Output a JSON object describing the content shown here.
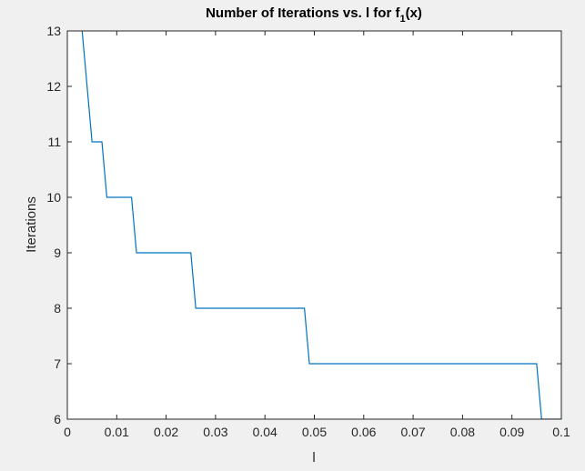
{
  "chart_data": {
    "type": "line",
    "title": {
      "main": "Number of Iterations vs. l for f",
      "subscript": "1",
      "suffix": "(x)"
    },
    "xlabel": "l",
    "ylabel": "Iterations",
    "xlim": [
      0,
      0.1
    ],
    "ylim": [
      6,
      13
    ],
    "xticks": [
      0,
      0.01,
      0.02,
      0.03,
      0.04,
      0.05,
      0.06,
      0.07,
      0.08,
      0.09,
      0.1
    ],
    "xtick_labels": [
      "0",
      "0.01",
      "0.02",
      "0.03",
      "0.04",
      "0.05",
      "0.06",
      "0.07",
      "0.08",
      "0.09",
      "0.1"
    ],
    "yticks": [
      6,
      7,
      8,
      9,
      10,
      11,
      12,
      13
    ],
    "ytick_labels": [
      "6",
      "7",
      "8",
      "9",
      "10",
      "11",
      "12",
      "13"
    ],
    "grid": false,
    "line_color": "#0072bd",
    "series": [
      {
        "x": [
          0.003,
          0.005,
          0.007,
          0.008,
          0.013,
          0.014,
          0.025,
          0.026,
          0.048,
          0.049,
          0.095,
          0.096,
          0.1
        ],
        "y": [
          13,
          11,
          11,
          10,
          10,
          9,
          9,
          8,
          8,
          7,
          7,
          6,
          6
        ]
      }
    ]
  }
}
